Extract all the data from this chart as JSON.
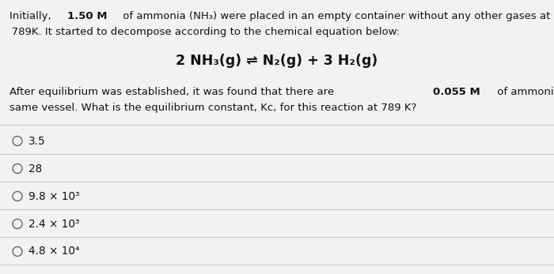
{
  "background_color": "#f2f2f2",
  "text_color": "#111111",
  "circle_color": "#666666",
  "divider_color": "#cccccc",
  "font_size_body": 9.5,
  "font_size_equation": 12.5,
  "font_size_options": 9.8,
  "line1_normal_a": "Initially, ",
  "line1_bold": "1.50 M",
  "line1_normal_b": " of ammonia (NH₃) were placed in an empty container without any other gases at",
  "line2": " 789K. It started to decompose according to the chemical equation below:",
  "equation": "2 NH₃(g) ⇌ N₂(g) + 3 H₂(g)",
  "para2_normal_a": "After equilibrium was established, it was found that there are ",
  "para2_bold": "0.055 M",
  "para2_normal_b": " of ammonia left in the",
  "para3": "same vessel. What is the equilibrium constant, Kc, for this reaction at 789 K?",
  "options": [
    "3.5",
    "28",
    "9.8 × 10³",
    "2.4 × 10³",
    "4.8 × 10⁴"
  ]
}
